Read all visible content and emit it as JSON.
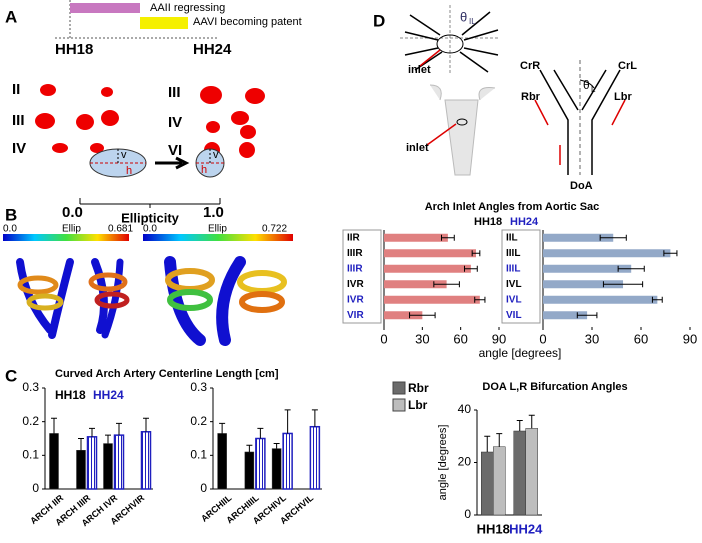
{
  "figure": {
    "panel_labels": [
      "A",
      "B",
      "C",
      "D"
    ],
    "timeline": {
      "regress": "AAII regressing",
      "patent": "AAVI becoming patent",
      "start": "HH18",
      "end": "HH24"
    },
    "arch_labels_left": [
      "II",
      "III",
      "IV"
    ],
    "arch_labels_right": [
      "III",
      "IV",
      "VI"
    ],
    "ellipticity": {
      "v1": "v",
      "h1": "h",
      "v2": "v",
      "h2": "h",
      "min": "0.0",
      "max": "1.0",
      "title": "Ellipticity"
    },
    "colorbars": [
      {
        "min": "0.0",
        "label": "Ellip",
        "max": "0.681"
      },
      {
        "min": "0.0",
        "label": "Ellip",
        "max": "0.722"
      }
    ],
    "diagram": {
      "theta_il": "θ",
      "theta_il_sub": "IL",
      "inlet_top": "inlet",
      "inlet_bottom": "inlet",
      "crr": "CrR",
      "crl": "CrL",
      "theta_l": "θ",
      "theta_l_sub": "L",
      "rbr": "Rbr",
      "lbr": "Lbr",
      "doa": "DoA"
    }
  },
  "chart_data": [
    {
      "type": "bar",
      "title": "Curved Arch Artery Centerline Length [cm]",
      "categories": [
        "ARCH IIR",
        "ARCH IIIR",
        "ARCH IVR",
        "ARCHVIR",
        "ARCHIIL",
        "ARCHIIIL",
        "ARCHIVL",
        "ARCHVIL"
      ],
      "split": 4,
      "series": [
        {
          "name": "HH18",
          "color": "#000000",
          "values": [
            0.165,
            0.115,
            0.135,
            null,
            0.165,
            0.11,
            0.12,
            null
          ],
          "errors": [
            0.045,
            0.035,
            0.025,
            null,
            0.03,
            0.02,
            0.015,
            null
          ]
        },
        {
          "name": "HH24",
          "color": "#1f1fbf",
          "hatch": true,
          "values": [
            null,
            0.155,
            0.16,
            0.17,
            null,
            0.15,
            0.165,
            0.185
          ],
          "errors": [
            null,
            0.025,
            0.035,
            0.04,
            null,
            0.03,
            0.07,
            0.05
          ]
        }
      ],
      "ylim": [
        0,
        0.3
      ],
      "yticks": [
        0,
        0.1,
        0.2,
        0.3
      ]
    },
    {
      "type": "barh",
      "title": "Arch Inlet Angles  from Aortic Sac",
      "legend": [
        "HH18",
        "HH24"
      ],
      "legend_colors": [
        "#000000",
        "#1f1fbf"
      ],
      "categories": [
        "IIR",
        "IIIR",
        "IIIR",
        "IVR",
        "IVR",
        "VIR",
        "IIL",
        "IIIL",
        "IIIL",
        "IVL",
        "IVL",
        "VIL"
      ],
      "category_colors": [
        "#000000",
        "#000000",
        "#1f1fbf",
        "#000000",
        "#1f1fbf",
        "#1f1fbf",
        "#000000",
        "#000000",
        "#1f1fbf",
        "#000000",
        "#1f1fbf",
        "#1f1fbf"
      ],
      "split": 6,
      "colors": [
        "#e08080",
        "#93a9c8"
      ],
      "values": [
        50,
        72,
        68,
        49,
        75,
        30,
        43,
        78,
        54,
        49,
        70,
        27
      ],
      "errors": [
        5,
        3,
        5,
        10,
        4,
        10,
        8,
        4,
        8,
        12,
        3,
        6
      ],
      "xlim": [
        0,
        90
      ],
      "xticks": [
        0,
        30,
        60,
        90
      ],
      "xlabel": "angle [degrees]"
    },
    {
      "type": "bar",
      "title": "DOA L,R Bifurcation Angles",
      "categories": [
        "HH18",
        "HH24"
      ],
      "category_colors": [
        "#000000",
        "#1f1fbf"
      ],
      "series": [
        {
          "name": "Rbr",
          "color": "#6b6b6b",
          "values": [
            24,
            32
          ],
          "errors": [
            6,
            4
          ]
        },
        {
          "name": "Lbr",
          "color": "#bdbdbd",
          "values": [
            26,
            33
          ],
          "errors": [
            5,
            5
          ]
        }
      ],
      "ylim": [
        0,
        40
      ],
      "yticks": [
        0,
        20,
        40
      ],
      "ylabel": "angle [degrees]"
    }
  ]
}
